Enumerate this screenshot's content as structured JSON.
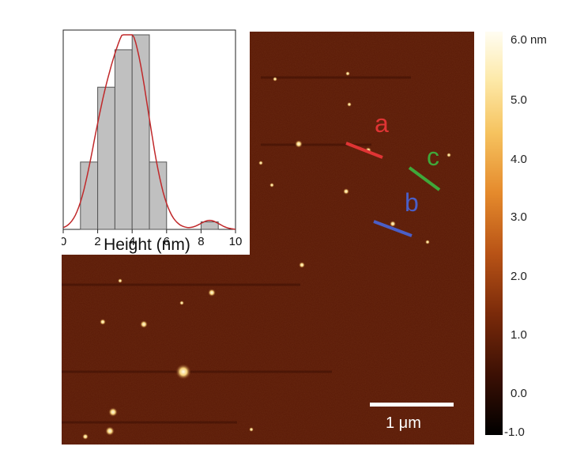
{
  "colorbar": {
    "unit": "nm",
    "ticks": [
      "6.0",
      "5.0",
      "4.0",
      "3.0",
      "2.0",
      "1.0",
      "0.0",
      "-1.0"
    ],
    "top_label": "6.0 nm"
  },
  "histogram": {
    "xlabel": "Height (nm)",
    "xticks": [
      "0",
      "2",
      "4",
      "6",
      "8",
      "10"
    ],
    "bins": [
      {
        "from": 1,
        "to": 2,
        "count": 9
      },
      {
        "from": 2,
        "to": 3,
        "count": 19
      },
      {
        "from": 3,
        "to": 4,
        "count": 24
      },
      {
        "from": 4,
        "to": 5,
        "count": 26
      },
      {
        "from": 5,
        "to": 6,
        "count": 9
      },
      {
        "from": 8,
        "to": 9,
        "count": 1
      }
    ],
    "bar_color": "#c0c0c0",
    "curve_color": "#c0282a"
  },
  "markers": [
    {
      "label": "a",
      "color": "#e03434"
    },
    {
      "label": "b",
      "color": "#4a5fc8"
    },
    {
      "label": "c",
      "color": "#3fa83a"
    }
  ],
  "scale_bar": {
    "label": "1 μm"
  }
}
